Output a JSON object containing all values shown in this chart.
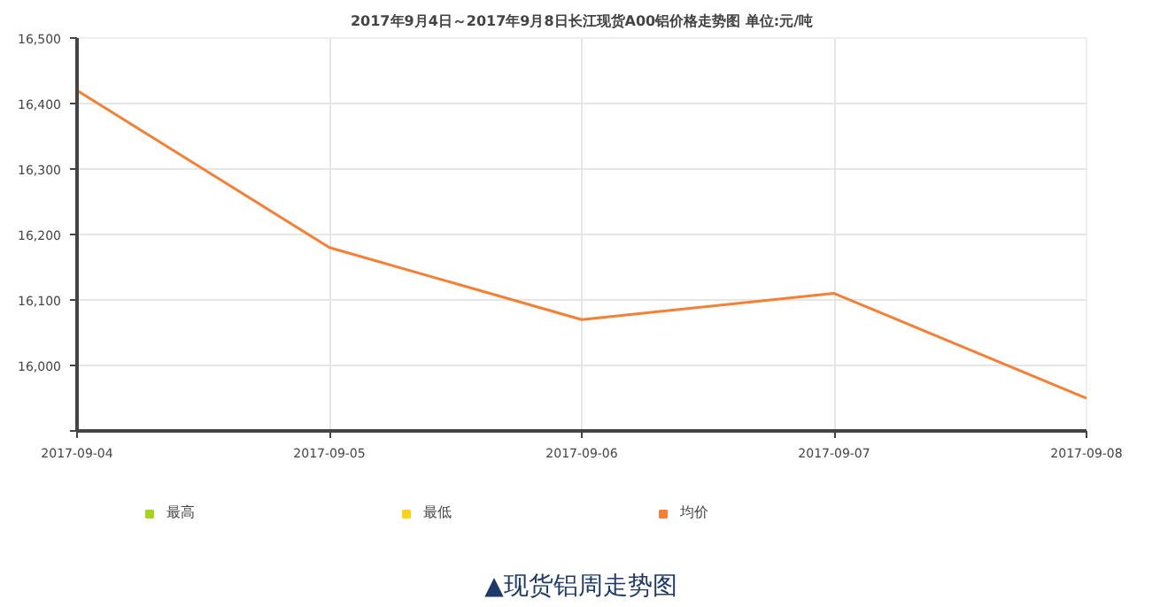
{
  "chart_data": {
    "type": "line",
    "title": "2017年9月4日～2017年9月8日长江现货A00铝价格走势图 单位:元/吨",
    "categories": [
      "2017-09-04",
      "2017-09-05",
      "2017-09-06",
      "2017-09-07",
      "2017-09-08"
    ],
    "series": [
      {
        "name": "最高",
        "color": "#a5d41c",
        "values": [
          null,
          null,
          null,
          null,
          null
        ]
      },
      {
        "name": "最低",
        "color": "#f8d21c",
        "values": [
          null,
          null,
          null,
          null,
          null
        ]
      },
      {
        "name": "均价",
        "color": "#f57f33",
        "values": [
          16420,
          16180,
          16070,
          16110,
          15950
        ]
      }
    ],
    "ylim": [
      15900,
      16500
    ],
    "yticks": [
      {
        "value": 15900,
        "label": null
      },
      {
        "value": 16000,
        "label": "16,000"
      },
      {
        "value": 16100,
        "label": "16,100"
      },
      {
        "value": 16200,
        "label": "16,200"
      },
      {
        "value": 16300,
        "label": "16,300"
      },
      {
        "value": 16400,
        "label": "16,400"
      },
      {
        "value": 16500,
        "label": "16,500"
      }
    ],
    "grid": true,
    "legend": "bottom left",
    "marker": "none",
    "line_style": "solid",
    "annotations": [
      "▲现货铝周走势图"
    ]
  }
}
